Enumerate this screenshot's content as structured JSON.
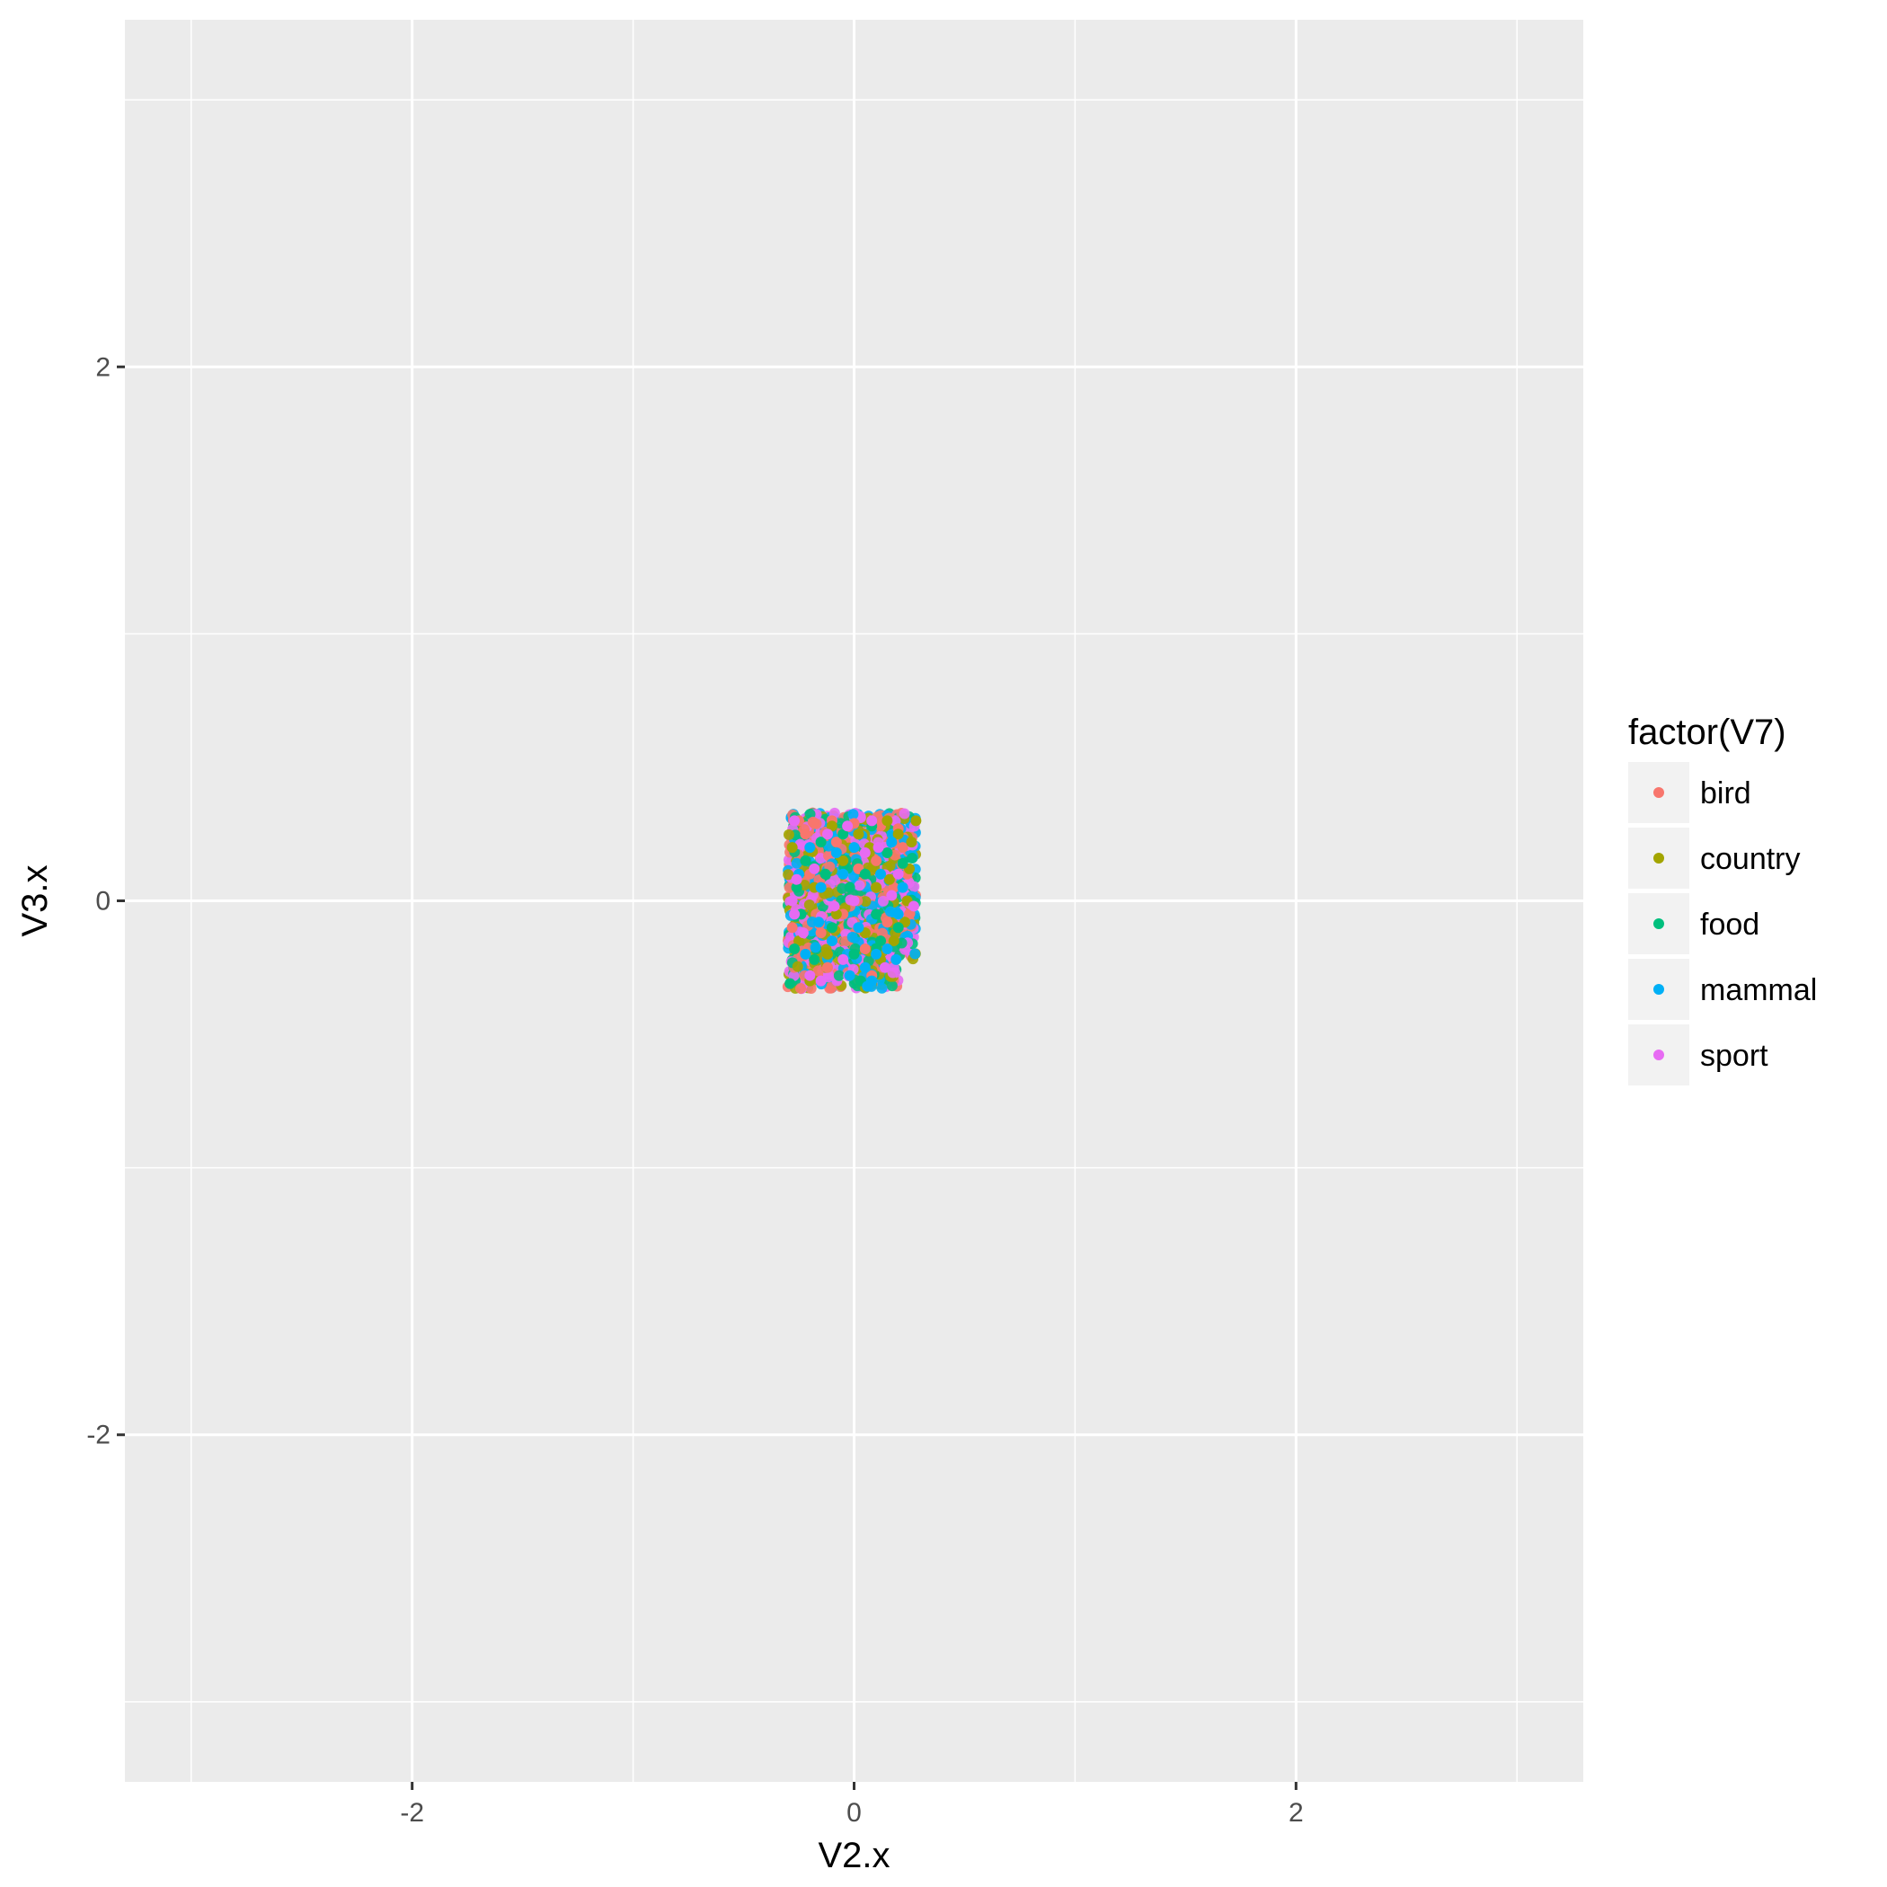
{
  "chart_data": {
    "type": "scatter",
    "title": "",
    "xlabel": "V2.x",
    "ylabel": "V3.x",
    "xlim": [
      -3.3,
      3.3
    ],
    "ylim": [
      -3.3,
      3.3
    ],
    "x_ticks": [
      -2,
      0,
      2
    ],
    "y_ticks": [
      -2,
      0,
      2
    ],
    "x_tick_labels": [
      "-2",
      "0",
      "2"
    ],
    "y_tick_labels": [
      "-2",
      "0",
      "2"
    ],
    "grid": true,
    "panel_background": "#EBEBEB",
    "grid_color": "#FFFFFF",
    "legend": {
      "title": "factor(V7)",
      "placement": "right",
      "entries": [
        {
          "label": "bird",
          "color": "#F8766D"
        },
        {
          "label": "country",
          "color": "#A3A500"
        },
        {
          "label": "food",
          "color": "#00BF7D"
        },
        {
          "label": "mammal",
          "color": "#00B0F6"
        },
        {
          "label": "sport",
          "color": "#E76BF3"
        }
      ]
    },
    "cluster_extent": {
      "x": [
        -0.3,
        0.28
      ],
      "y": [
        -0.33,
        0.33
      ],
      "notch_x_from": 0.2,
      "notch_y_below": -0.22
    },
    "series": [
      {
        "name": "bird",
        "color": "#F8766D",
        "points": [
          [
            -0.25,
            0.3
          ],
          [
            -0.18,
            0.29
          ],
          [
            -0.1,
            0.3
          ],
          [
            0.0,
            0.29
          ],
          [
            0.12,
            0.28
          ],
          [
            0.2,
            0.27
          ],
          [
            0.25,
            -0.05
          ],
          [
            0.18,
            0.05
          ],
          [
            -0.2,
            0.1
          ],
          [
            0.05,
            -0.18
          ],
          [
            -0.12,
            -0.25
          ],
          [
            0.1,
            0.15
          ],
          [
            -0.05,
            -0.05
          ],
          [
            0.22,
            0.2
          ],
          [
            -0.28,
            -0.1
          ],
          [
            0.02,
            0.12
          ],
          [
            -0.15,
            -0.12
          ],
          [
            0.15,
            -0.08
          ],
          [
            -0.08,
            0.22
          ],
          [
            0.08,
            -0.28
          ],
          [
            -0.22,
            0.25
          ],
          [
            0.24,
            0.1
          ]
        ]
      },
      {
        "name": "country",
        "color": "#A3A500",
        "points": [
          [
            0.28,
            0.3
          ],
          [
            0.26,
            0.22
          ],
          [
            0.25,
            0.12
          ],
          [
            0.24,
            0.0
          ],
          [
            0.23,
            -0.08
          ],
          [
            0.2,
            0.25
          ],
          [
            0.15,
            0.3
          ],
          [
            0.1,
            0.05
          ],
          [
            0.05,
            -0.12
          ],
          [
            -0.05,
            0.15
          ],
          [
            -0.12,
            -0.2
          ],
          [
            -0.2,
            -0.3
          ],
          [
            -0.25,
            -0.15
          ],
          [
            0.02,
            0.25
          ],
          [
            0.18,
            -0.15
          ],
          [
            -0.08,
            -0.05
          ],
          [
            0.12,
            -0.22
          ],
          [
            -0.18,
            0.05
          ],
          [
            0.07,
            0.2
          ],
          [
            -0.28,
            0.2
          ],
          [
            0.16,
            0.08
          ],
          [
            -0.1,
            0.28
          ]
        ]
      },
      {
        "name": "food",
        "color": "#00BF7D",
        "points": [
          [
            -0.29,
            -0.31
          ],
          [
            -0.27,
            -0.18
          ],
          [
            -0.26,
            0.05
          ],
          [
            -0.22,
            0.15
          ],
          [
            -0.15,
            0.22
          ],
          [
            -0.1,
            -0.1
          ],
          [
            -0.05,
            0.25
          ],
          [
            0.0,
            -0.2
          ],
          [
            0.05,
            0.1
          ],
          [
            0.1,
            -0.05
          ],
          [
            0.15,
            0.18
          ],
          [
            0.2,
            -0.1
          ],
          [
            -0.18,
            -0.22
          ],
          [
            0.08,
            0.28
          ],
          [
            -0.24,
            -0.05
          ],
          [
            0.12,
            -0.15
          ],
          [
            -0.02,
            0.05
          ],
          [
            0.22,
            0.14
          ],
          [
            -0.13,
            0.1
          ],
          [
            0.03,
            -0.3
          ]
        ]
      },
      {
        "name": "mammal",
        "color": "#00B0F6",
        "points": [
          [
            -0.2,
            0.2
          ],
          [
            -0.15,
            0.05
          ],
          [
            -0.1,
            -0.15
          ],
          [
            -0.05,
            0.1
          ],
          [
            0.0,
            0.2
          ],
          [
            0.05,
            -0.25
          ],
          [
            0.08,
            -0.3
          ],
          [
            0.12,
            0.1
          ],
          [
            0.17,
            0.22
          ],
          [
            0.2,
            -0.05
          ],
          [
            -0.25,
            0.1
          ],
          [
            -0.22,
            -0.2
          ],
          [
            0.02,
            -0.1
          ],
          [
            0.1,
            -0.2
          ],
          [
            -0.08,
            0.18
          ],
          [
            0.15,
            -0.18
          ],
          [
            0.06,
            -0.32
          ],
          [
            -0.16,
            -0.08
          ],
          [
            0.22,
            0.05
          ],
          [
            -0.02,
            -0.28
          ],
          [
            0.19,
            -0.22
          ]
        ]
      },
      {
        "name": "sport",
        "color": "#E76BF3",
        "points": [
          [
            -0.28,
            0.0
          ],
          [
            -0.27,
            -0.05
          ],
          [
            -0.26,
            0.08
          ],
          [
            -0.2,
            -0.28
          ],
          [
            -0.15,
            -0.3
          ],
          [
            -0.12,
            0.25
          ],
          [
            -0.05,
            -0.22
          ],
          [
            0.0,
            0.0
          ],
          [
            0.08,
            0.3
          ],
          [
            0.14,
            -0.25
          ],
          [
            0.2,
            0.1
          ],
          [
            0.27,
            -0.02
          ],
          [
            -0.18,
            0.12
          ],
          [
            -0.09,
            -0.02
          ],
          [
            0.05,
            0.18
          ],
          [
            -0.27,
            0.3
          ],
          [
            0.11,
            0.2
          ],
          [
            -0.23,
            -0.12
          ],
          [
            0.17,
            0.02
          ],
          [
            -0.03,
            0.28
          ]
        ]
      }
    ]
  }
}
